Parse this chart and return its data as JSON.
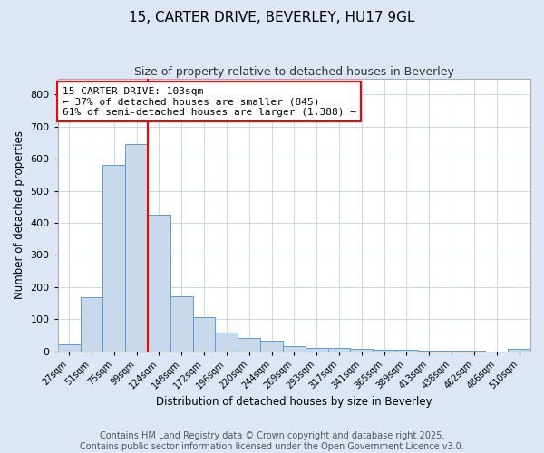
{
  "title": "15, CARTER DRIVE, BEVERLEY, HU17 9GL",
  "subtitle": "Size of property relative to detached houses in Beverley",
  "xlabel": "Distribution of detached houses by size in Beverley",
  "ylabel": "Number of detached properties",
  "bins": [
    "27sqm",
    "51sqm",
    "75sqm",
    "99sqm",
    "124sqm",
    "148sqm",
    "172sqm",
    "196sqm",
    "220sqm",
    "244sqm",
    "269sqm",
    "293sqm",
    "317sqm",
    "341sqm",
    "365sqm",
    "389sqm",
    "413sqm",
    "438sqm",
    "462sqm",
    "486sqm",
    "510sqm"
  ],
  "values": [
    20,
    168,
    580,
    645,
    425,
    170,
    105,
    57,
    42,
    32,
    15,
    10,
    10,
    7,
    5,
    3,
    2,
    1,
    1,
    0,
    6
  ],
  "bar_color": "#c9d9ec",
  "bar_edge_color": "#5b9bd5",
  "vline_pos": 3.5,
  "vline_color": "red",
  "annotation_text": "15 CARTER DRIVE: 103sqm\n← 37% of detached houses are smaller (845)\n61% of semi-detached houses are larger (1,388) →",
  "annotation_box_color": "white",
  "annotation_box_edge": "red",
  "ylim": [
    0,
    850
  ],
  "yticks": [
    0,
    100,
    200,
    300,
    400,
    500,
    600,
    700,
    800
  ],
  "page_background_color": "#dce6f5",
  "axes_background": "white",
  "footer_line1": "Contains HM Land Registry data © Crown copyright and database right 2025.",
  "footer_line2": "Contains public sector information licensed under the Open Government Licence v3.0.",
  "title_fontsize": 11,
  "subtitle_fontsize": 9,
  "footer_fontsize": 7,
  "annotation_fontsize": 8
}
